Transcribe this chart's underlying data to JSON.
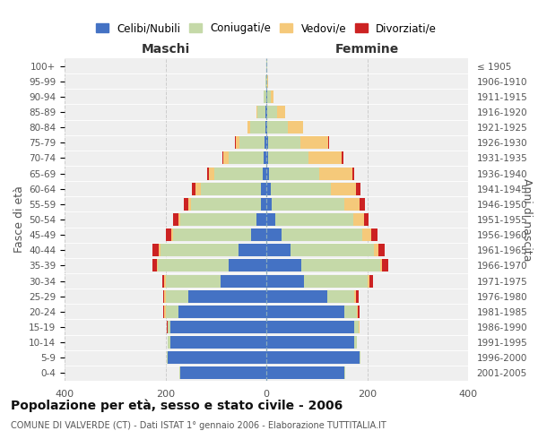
{
  "age_groups": [
    "0-4",
    "5-9",
    "10-14",
    "15-19",
    "20-24",
    "25-29",
    "30-34",
    "35-39",
    "40-44",
    "45-49",
    "50-54",
    "55-59",
    "60-64",
    "65-69",
    "70-74",
    "75-79",
    "80-84",
    "85-89",
    "90-94",
    "95-99",
    "100+"
  ],
  "birth_years": [
    "2001-2005",
    "1996-2000",
    "1991-1995",
    "1986-1990",
    "1981-1985",
    "1976-1980",
    "1971-1975",
    "1966-1970",
    "1961-1965",
    "1956-1960",
    "1951-1955",
    "1946-1950",
    "1941-1945",
    "1936-1940",
    "1931-1935",
    "1926-1930",
    "1921-1925",
    "1916-1920",
    "1911-1915",
    "1906-1910",
    "≤ 1905"
  ],
  "male_celibi": [
    170,
    195,
    190,
    190,
    175,
    155,
    90,
    75,
    55,
    30,
    20,
    10,
    10,
    8,
    5,
    3,
    2,
    2,
    0,
    0,
    0
  ],
  "male_coniugati": [
    2,
    2,
    5,
    5,
    25,
    45,
    110,
    140,
    155,
    155,
    150,
    140,
    120,
    95,
    70,
    50,
    30,
    15,
    5,
    1,
    0
  ],
  "male_vedovi": [
    0,
    0,
    0,
    1,
    2,
    2,
    2,
    2,
    3,
    3,
    5,
    5,
    10,
    10,
    10,
    8,
    5,
    3,
    1,
    0,
    0
  ],
  "male_divorziati": [
    0,
    0,
    0,
    1,
    2,
    2,
    5,
    8,
    12,
    12,
    10,
    8,
    8,
    5,
    2,
    1,
    0,
    0,
    0,
    0,
    0
  ],
  "female_celibi": [
    155,
    185,
    175,
    175,
    155,
    120,
    75,
    70,
    48,
    30,
    18,
    10,
    8,
    5,
    4,
    3,
    2,
    2,
    1,
    0,
    0
  ],
  "female_coniugati": [
    2,
    2,
    5,
    8,
    25,
    55,
    125,
    155,
    165,
    160,
    155,
    145,
    120,
    100,
    80,
    65,
    40,
    20,
    8,
    2,
    1
  ],
  "female_vedovi": [
    0,
    0,
    0,
    1,
    2,
    3,
    4,
    5,
    10,
    18,
    20,
    30,
    50,
    65,
    65,
    55,
    30,
    15,
    5,
    1,
    1
  ],
  "female_divorziati": [
    0,
    0,
    0,
    1,
    3,
    5,
    8,
    12,
    12,
    12,
    10,
    10,
    8,
    5,
    3,
    2,
    1,
    0,
    0,
    0,
    0
  ],
  "color_celibi": "#4472c4",
  "color_coniugati": "#c5d9a8",
  "color_vedovi": "#f5c97a",
  "color_divorziati": "#cc2222",
  "title_main": "Popolazione per età, sesso e stato civile - 2006",
  "title_sub": "COMUNE DI VALVERDE (CT) - Dati ISTAT 1° gennaio 2006 - Elaborazione TUTTITALIA.IT",
  "xlabel_left": "Maschi",
  "xlabel_right": "Femmine",
  "ylabel_left": "Fasce di età",
  "ylabel_right": "Anni di nascita",
  "xlim": 400,
  "legend_labels": [
    "Celibi/Nubili",
    "Coniugati/e",
    "Vedovi/e",
    "Divorziati/e"
  ],
  "bg_color": "#ffffff",
  "plot_bg_color": "#efefef"
}
